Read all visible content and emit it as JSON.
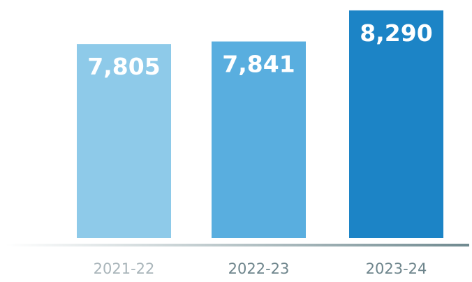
{
  "chart_data": {
    "type": "bar",
    "categories": [
      "2021-22",
      "2022-23",
      "2023-24"
    ],
    "values": [
      7805,
      7841,
      8290
    ],
    "data_labels": [
      "7,805",
      "7,841",
      "8,290"
    ],
    "title": "",
    "xlabel": "",
    "ylabel": "",
    "ylim": [
      5000,
      8400
    ],
    "grid": false,
    "bar_icon": "people-cheering-icon",
    "colors": [
      "#8ECAE9",
      "#59AEDF",
      "#1C84C6"
    ],
    "label_colors": [
      "#A9B5BA",
      "#6E858C",
      "#6E858C"
    ],
    "baseline_colors": [
      "#FFFFFF",
      "#708A90"
    ]
  }
}
